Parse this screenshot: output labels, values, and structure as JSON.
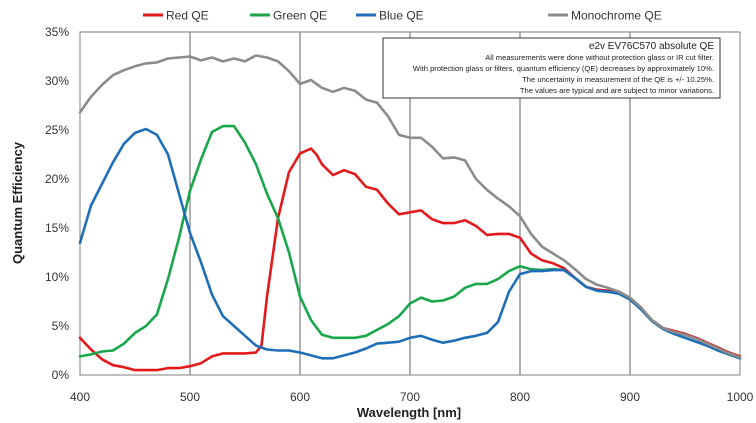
{
  "chart_data": {
    "type": "line",
    "xlabel": "Wavelength [nm]",
    "ylabel": "Quantum Efficiency",
    "xlim": [
      400,
      1000
    ],
    "ylim": [
      0,
      35
    ],
    "x_ticks": [
      400,
      500,
      600,
      700,
      800,
      900,
      1000
    ],
    "y_ticks": [
      0,
      5,
      10,
      15,
      20,
      25,
      30,
      35
    ],
    "y_tick_suffix": "%",
    "grid": "vertical lines only",
    "legend_position": "top, above plot",
    "annotation": {
      "title": "e2v EV76C570 absolute QE",
      "lines": [
        "All measurements were done without protection glass or IR cut filter.",
        "With protection glass or filters, quantum efficiency (QE) decreases by approximately 10%.",
        "The uncertainty in measurement of the QE is +/- 10.25%.",
        "The values are typical and are subject to minor variations."
      ]
    },
    "series": [
      {
        "name": "Red QE",
        "color": "#e31a1c",
        "points": [
          [
            400,
            3.8
          ],
          [
            410,
            2.6
          ],
          [
            420,
            1.6
          ],
          [
            430,
            1.0
          ],
          [
            440,
            0.8
          ],
          [
            450,
            0.5
          ],
          [
            460,
            0.5
          ],
          [
            470,
            0.5
          ],
          [
            480,
            0.7
          ],
          [
            490,
            0.7
          ],
          [
            500,
            0.9
          ],
          [
            510,
            1.2
          ],
          [
            520,
            1.9
          ],
          [
            530,
            2.2
          ],
          [
            540,
            2.2
          ],
          [
            550,
            2.2
          ],
          [
            560,
            2.3
          ],
          [
            565,
            3.0
          ],
          [
            570,
            8.0
          ],
          [
            580,
            16.0
          ],
          [
            590,
            20.7
          ],
          [
            600,
            22.6
          ],
          [
            610,
            23.1
          ],
          [
            615,
            22.5
          ],
          [
            620,
            21.5
          ],
          [
            630,
            20.4
          ],
          [
            640,
            20.9
          ],
          [
            650,
            20.5
          ],
          [
            660,
            19.2
          ],
          [
            670,
            18.9
          ],
          [
            680,
            17.5
          ],
          [
            690,
            16.4
          ],
          [
            700,
            16.6
          ],
          [
            710,
            16.8
          ],
          [
            720,
            15.9
          ],
          [
            730,
            15.5
          ],
          [
            740,
            15.5
          ],
          [
            750,
            15.8
          ],
          [
            760,
            15.2
          ],
          [
            770,
            14.3
          ],
          [
            780,
            14.4
          ],
          [
            790,
            14.4
          ],
          [
            800,
            14.0
          ],
          [
            810,
            12.4
          ],
          [
            820,
            11.7
          ],
          [
            830,
            11.4
          ],
          [
            840,
            10.9
          ],
          [
            850,
            9.9
          ],
          [
            860,
            9.0
          ],
          [
            870,
            8.7
          ],
          [
            880,
            8.6
          ],
          [
            890,
            8.4
          ],
          [
            900,
            7.8
          ],
          [
            910,
            6.8
          ],
          [
            920,
            5.6
          ],
          [
            930,
            4.8
          ],
          [
            940,
            4.5
          ],
          [
            950,
            4.2
          ],
          [
            960,
            3.8
          ],
          [
            970,
            3.3
          ],
          [
            980,
            2.8
          ],
          [
            990,
            2.3
          ],
          [
            1000,
            1.9
          ]
        ]
      },
      {
        "name": "Green QE",
        "color": "#1aa64b",
        "points": [
          [
            400,
            1.9
          ],
          [
            410,
            2.1
          ],
          [
            420,
            2.4
          ],
          [
            430,
            2.5
          ],
          [
            440,
            3.2
          ],
          [
            450,
            4.3
          ],
          [
            460,
            5.0
          ],
          [
            470,
            6.2
          ],
          [
            480,
            9.8
          ],
          [
            490,
            14.0
          ],
          [
            500,
            18.8
          ],
          [
            510,
            22.0
          ],
          [
            520,
            24.8
          ],
          [
            530,
            25.4
          ],
          [
            540,
            25.4
          ],
          [
            550,
            23.7
          ],
          [
            560,
            21.5
          ],
          [
            570,
            18.5
          ],
          [
            580,
            16.0
          ],
          [
            590,
            12.5
          ],
          [
            600,
            8.0
          ],
          [
            610,
            5.6
          ],
          [
            620,
            4.1
          ],
          [
            630,
            3.8
          ],
          [
            640,
            3.8
          ],
          [
            650,
            3.8
          ],
          [
            660,
            4.0
          ],
          [
            670,
            4.6
          ],
          [
            680,
            5.2
          ],
          [
            690,
            6.0
          ],
          [
            700,
            7.3
          ],
          [
            710,
            7.9
          ],
          [
            720,
            7.5
          ],
          [
            730,
            7.6
          ],
          [
            740,
            8.0
          ],
          [
            750,
            8.9
          ],
          [
            760,
            9.3
          ],
          [
            770,
            9.3
          ],
          [
            780,
            9.8
          ],
          [
            790,
            10.6
          ],
          [
            800,
            11.1
          ],
          [
            810,
            10.8
          ],
          [
            820,
            10.7
          ],
          [
            830,
            10.8
          ],
          [
            840,
            10.7
          ],
          [
            850,
            9.9
          ],
          [
            860,
            9.0
          ],
          [
            870,
            8.6
          ],
          [
            880,
            8.5
          ],
          [
            890,
            8.3
          ],
          [
            900,
            7.7
          ],
          [
            910,
            6.7
          ],
          [
            920,
            5.5
          ],
          [
            930,
            4.7
          ],
          [
            940,
            4.2
          ],
          [
            950,
            3.8
          ],
          [
            960,
            3.4
          ],
          [
            970,
            3.0
          ],
          [
            980,
            2.5
          ],
          [
            990,
            2.1
          ],
          [
            1000,
            1.7
          ]
        ]
      },
      {
        "name": "Blue QE",
        "color": "#1f6fb8",
        "points": [
          [
            400,
            13.5
          ],
          [
            410,
            17.3
          ],
          [
            420,
            19.5
          ],
          [
            430,
            21.7
          ],
          [
            440,
            23.6
          ],
          [
            450,
            24.7
          ],
          [
            460,
            25.1
          ],
          [
            470,
            24.5
          ],
          [
            480,
            22.5
          ],
          [
            490,
            18.5
          ],
          [
            500,
            14.5
          ],
          [
            510,
            11.5
          ],
          [
            520,
            8.2
          ],
          [
            530,
            6.0
          ],
          [
            540,
            5.0
          ],
          [
            550,
            4.0
          ],
          [
            560,
            3.0
          ],
          [
            570,
            2.6
          ],
          [
            580,
            2.5
          ],
          [
            590,
            2.5
          ],
          [
            600,
            2.3
          ],
          [
            610,
            2.0
          ],
          [
            620,
            1.7
          ],
          [
            630,
            1.7
          ],
          [
            640,
            2.0
          ],
          [
            650,
            2.3
          ],
          [
            660,
            2.7
          ],
          [
            670,
            3.2
          ],
          [
            680,
            3.3
          ],
          [
            690,
            3.4
          ],
          [
            700,
            3.8
          ],
          [
            710,
            4.0
          ],
          [
            720,
            3.6
          ],
          [
            730,
            3.3
          ],
          [
            740,
            3.5
          ],
          [
            750,
            3.8
          ],
          [
            760,
            4.0
          ],
          [
            770,
            4.3
          ],
          [
            780,
            5.4
          ],
          [
            790,
            8.5
          ],
          [
            800,
            10.3
          ],
          [
            810,
            10.6
          ],
          [
            820,
            10.6
          ],
          [
            830,
            10.7
          ],
          [
            840,
            10.7
          ],
          [
            850,
            9.9
          ],
          [
            860,
            9.0
          ],
          [
            870,
            8.6
          ],
          [
            880,
            8.5
          ],
          [
            890,
            8.3
          ],
          [
            900,
            7.7
          ],
          [
            910,
            6.7
          ],
          [
            920,
            5.5
          ],
          [
            930,
            4.7
          ],
          [
            940,
            4.2
          ],
          [
            950,
            3.8
          ],
          [
            960,
            3.4
          ],
          [
            970,
            3.0
          ],
          [
            980,
            2.5
          ],
          [
            990,
            2.1
          ],
          [
            1000,
            1.7
          ]
        ]
      },
      {
        "name": "Monochrome QE",
        "color": "#8c8c8c",
        "points": [
          [
            400,
            26.8
          ],
          [
            410,
            28.4
          ],
          [
            420,
            29.6
          ],
          [
            430,
            30.6
          ],
          [
            440,
            31.1
          ],
          [
            450,
            31.5
          ],
          [
            460,
            31.8
          ],
          [
            470,
            31.9
          ],
          [
            480,
            32.3
          ],
          [
            490,
            32.4
          ],
          [
            500,
            32.5
          ],
          [
            510,
            32.1
          ],
          [
            520,
            32.4
          ],
          [
            530,
            32.0
          ],
          [
            540,
            32.3
          ],
          [
            550,
            32.0
          ],
          [
            560,
            32.6
          ],
          [
            570,
            32.4
          ],
          [
            580,
            32.0
          ],
          [
            590,
            31.0
          ],
          [
            600,
            29.7
          ],
          [
            610,
            30.1
          ],
          [
            620,
            29.3
          ],
          [
            630,
            28.9
          ],
          [
            640,
            29.3
          ],
          [
            650,
            29.0
          ],
          [
            660,
            28.1
          ],
          [
            670,
            27.8
          ],
          [
            680,
            26.4
          ],
          [
            690,
            24.5
          ],
          [
            700,
            24.2
          ],
          [
            710,
            24.2
          ],
          [
            720,
            23.3
          ],
          [
            730,
            22.1
          ],
          [
            740,
            22.2
          ],
          [
            750,
            21.9
          ],
          [
            760,
            20.0
          ],
          [
            770,
            18.9
          ],
          [
            780,
            18.0
          ],
          [
            790,
            17.2
          ],
          [
            800,
            16.2
          ],
          [
            810,
            14.4
          ],
          [
            820,
            13.1
          ],
          [
            830,
            12.4
          ],
          [
            840,
            11.7
          ],
          [
            850,
            10.8
          ],
          [
            860,
            9.8
          ],
          [
            870,
            9.2
          ],
          [
            880,
            8.9
          ],
          [
            890,
            8.5
          ],
          [
            900,
            7.9
          ],
          [
            910,
            6.9
          ],
          [
            920,
            5.6
          ],
          [
            930,
            4.8
          ],
          [
            940,
            4.4
          ],
          [
            950,
            4.1
          ],
          [
            960,
            3.7
          ],
          [
            970,
            3.2
          ],
          [
            980,
            2.7
          ],
          [
            990,
            2.2
          ],
          [
            1000,
            1.8
          ]
        ]
      }
    ]
  }
}
